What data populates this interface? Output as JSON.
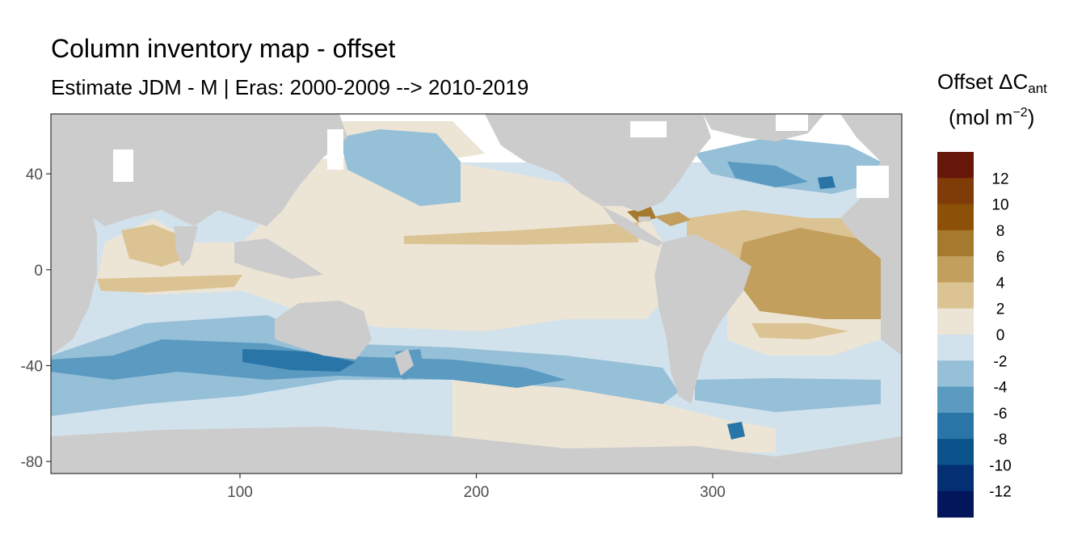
{
  "title": "Column inventory map - offset",
  "subtitle": "Estimate JDM - M | Eras: 2000-2009 --> 2010-2019",
  "legend": {
    "title_main": "Offset ΔC",
    "title_sub": "ant",
    "unit_base": "(mol m",
    "unit_sup": "−2",
    "unit_close": ")",
    "breaks": [
      "12",
      "10",
      "8",
      "6",
      "4",
      "2",
      "0",
      "-2",
      "-4",
      "-6",
      "-8",
      "-10",
      "-12"
    ],
    "colors": [
      "#67160a",
      "#7f3b08",
      "#8c5006",
      "#a67a2e",
      "#c29f5c",
      "#dcc394",
      "#ece5d6",
      "#d2e2ec",
      "#96bfd8",
      "#5b9ac1",
      "#2a75a7",
      "#0a528a",
      "#042f73",
      "#03165c"
    ]
  },
  "colors": {
    "land": "#cccccc",
    "background": "#ffffff"
  },
  "chart_data": {
    "type": "heatmap",
    "xlim": [
      20,
      380
    ],
    "ylim": [
      -85,
      65
    ],
    "x_ticks": [
      100,
      200,
      300
    ],
    "y_ticks": [
      40,
      0,
      -40,
      -80
    ],
    "x_tick_labels": [
      "100",
      "200",
      "300"
    ],
    "y_tick_labels": [
      "40",
      "0",
      "-40",
      "-80"
    ]
  }
}
